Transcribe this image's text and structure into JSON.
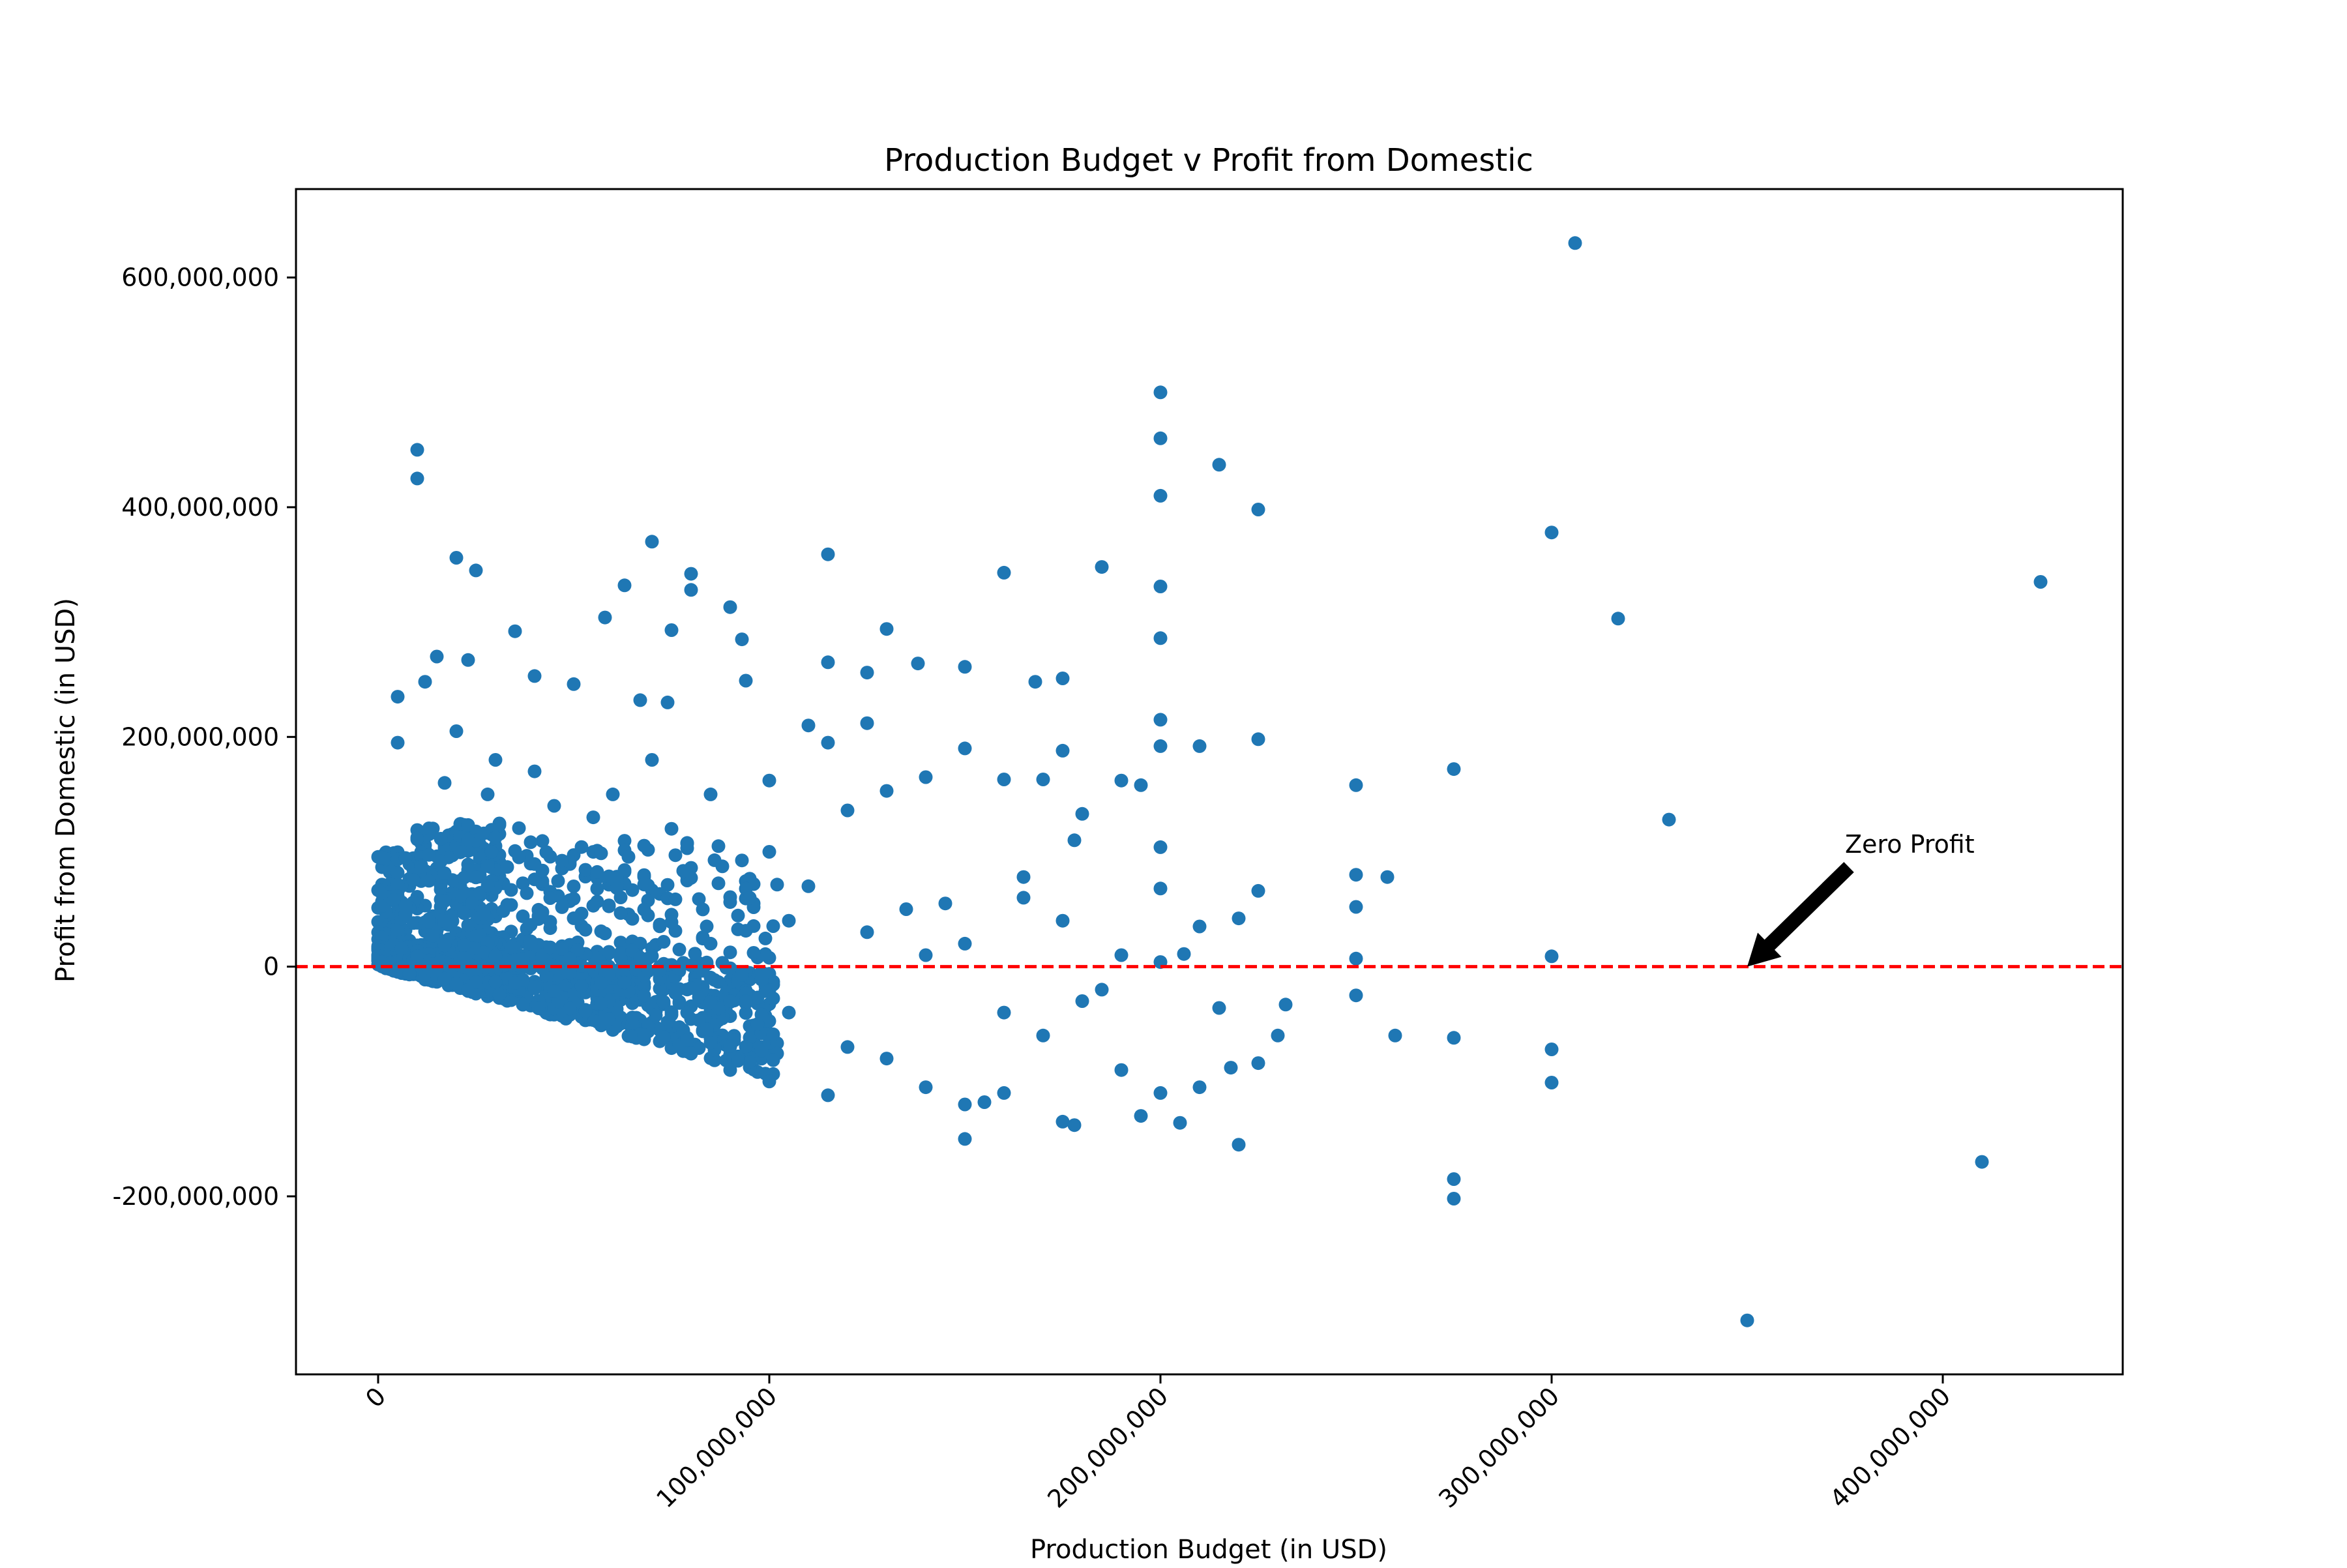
{
  "chart_data": {
    "type": "scatter",
    "title": "Production Budget v Profit from Domestic",
    "xlabel": "Production Budget (in USD)",
    "ylabel": "Profit from Domestic (in USD)",
    "xlim": [
      -21000000,
      446000000
    ],
    "ylim": [
      -355000000,
      677000000
    ],
    "xticks": [
      0,
      100000000,
      200000000,
      300000000,
      400000000
    ],
    "xtick_labels": [
      "0",
      "100,000,000",
      "200,000,000",
      "300,000,000",
      "400,000,000"
    ],
    "yticks": [
      -200000000,
      0,
      200000000,
      400000000,
      600000000
    ],
    "ytick_labels": [
      "-200,000,000",
      "0",
      "200,000,000",
      "400,000,000",
      "600,000,000"
    ],
    "grid": false,
    "marker_color": "#1f77b4",
    "reference_line": {
      "y": 0,
      "style": "dashed",
      "color": "#ff0000"
    },
    "annotation": {
      "text": "Zero Profit",
      "x": 350000000,
      "y": 0,
      "arrow_color": "#000000"
    },
    "series": [
      {
        "values": [
          [
            306000000,
            630000000
          ],
          [
            10000000,
            450000000
          ],
          [
            10000000,
            425000000
          ],
          [
            200000000,
            500000000
          ],
          [
            200000000,
            460000000
          ],
          [
            200000000,
            410000000
          ],
          [
            215000000,
            437000000
          ],
          [
            225000000,
            398000000
          ],
          [
            300000000,
            378000000
          ],
          [
            425000000,
            335000000
          ],
          [
            317000000,
            303000000
          ],
          [
            330000000,
            128000000
          ],
          [
            20000000,
            356000000
          ],
          [
            25000000,
            345000000
          ],
          [
            70000000,
            370000000
          ],
          [
            80000000,
            342000000
          ],
          [
            80000000,
            328000000
          ],
          [
            115000000,
            359000000
          ],
          [
            160000000,
            343000000
          ],
          [
            185000000,
            348000000
          ],
          [
            200000000,
            331000000
          ],
          [
            63000000,
            332000000
          ],
          [
            90000000,
            313000000
          ],
          [
            130000000,
            294000000
          ],
          [
            200000000,
            286000000
          ],
          [
            75000000,
            293000000
          ],
          [
            35000000,
            292000000
          ],
          [
            58000000,
            304000000
          ],
          [
            93000000,
            285000000
          ],
          [
            15000000,
            270000000
          ],
          [
            23000000,
            267000000
          ],
          [
            115000000,
            265000000
          ],
          [
            138000000,
            264000000
          ],
          [
            150000000,
            261000000
          ],
          [
            125000000,
            256000000
          ],
          [
            175000000,
            251000000
          ],
          [
            168000000,
            248000000
          ],
          [
            5000000,
            235000000
          ],
          [
            12000000,
            248000000
          ],
          [
            40000000,
            253000000
          ],
          [
            50000000,
            246000000
          ],
          [
            67000000,
            232000000
          ],
          [
            74000000,
            230000000
          ],
          [
            94000000,
            249000000
          ],
          [
            200000000,
            215000000
          ],
          [
            225000000,
            198000000
          ],
          [
            210000000,
            192000000
          ],
          [
            275000000,
            172000000
          ],
          [
            250000000,
            158000000
          ],
          [
            5000000,
            195000000
          ],
          [
            20000000,
            205000000
          ],
          [
            110000000,
            210000000
          ],
          [
            125000000,
            212000000
          ],
          [
            150000000,
            190000000
          ],
          [
            175000000,
            188000000
          ],
          [
            190000000,
            162000000
          ],
          [
            195000000,
            158000000
          ],
          [
            200000000,
            192000000
          ],
          [
            100000000,
            162000000
          ],
          [
            115000000,
            195000000
          ],
          [
            120000000,
            136000000
          ],
          [
            130000000,
            153000000
          ],
          [
            140000000,
            165000000
          ],
          [
            160000000,
            163000000
          ],
          [
            170000000,
            163000000
          ],
          [
            180000000,
            133000000
          ],
          [
            200000000,
            104000000
          ],
          [
            200000000,
            68000000
          ],
          [
            225000000,
            66000000
          ],
          [
            250000000,
            80000000
          ],
          [
            258000000,
            78000000
          ],
          [
            250000000,
            52000000
          ],
          [
            250000000,
            7000000
          ],
          [
            300000000,
            9000000
          ],
          [
            210000000,
            35000000
          ],
          [
            220000000,
            42000000
          ],
          [
            206000000,
            11000000
          ],
          [
            200000000,
            4000000
          ],
          [
            250000000,
            -25000000
          ],
          [
            260000000,
            -60000000
          ],
          [
            275000000,
            -62000000
          ],
          [
            300000000,
            -72000000
          ],
          [
            300000000,
            -101000000
          ],
          [
            232000000,
            -33000000
          ],
          [
            230000000,
            -60000000
          ],
          [
            225000000,
            -84000000
          ],
          [
            218000000,
            -88000000
          ],
          [
            215000000,
            -36000000
          ],
          [
            210000000,
            -105000000
          ],
          [
            205000000,
            -136000000
          ],
          [
            220000000,
            -155000000
          ],
          [
            200000000,
            -110000000
          ],
          [
            195000000,
            -130000000
          ],
          [
            190000000,
            -90000000
          ],
          [
            175000000,
            -135000000
          ],
          [
            178000000,
            -138000000
          ],
          [
            150000000,
            -150000000
          ],
          [
            275000000,
            -185000000
          ],
          [
            275000000,
            -202000000
          ],
          [
            410000000,
            -170000000
          ],
          [
            350000000,
            -308000000
          ],
          [
            150000000,
            -120000000
          ],
          [
            155000000,
            -118000000
          ],
          [
            160000000,
            -110000000
          ],
          [
            140000000,
            -105000000
          ],
          [
            115000000,
            -112000000
          ],
          [
            100000000,
            -100000000
          ],
          [
            90000000,
            -90000000
          ],
          [
            178000000,
            110000000
          ],
          [
            165000000,
            78000000
          ],
          [
            145000000,
            55000000
          ],
          [
            135000000,
            50000000
          ],
          [
            100000000,
            100000000
          ],
          [
            75000000,
            120000000
          ],
          [
            85000000,
            150000000
          ],
          [
            70000000,
            180000000
          ],
          [
            30000000,
            180000000
          ],
          [
            40000000,
            170000000
          ],
          [
            60000000,
            150000000
          ],
          [
            55000000,
            130000000
          ],
          [
            17000000,
            160000000
          ],
          [
            28000000,
            150000000
          ],
          [
            45000000,
            140000000
          ],
          [
            150000000,
            20000000
          ],
          [
            160000000,
            -40000000
          ],
          [
            120000000,
            -70000000
          ],
          [
            130000000,
            -80000000
          ],
          [
            110000000,
            70000000
          ],
          [
            140000000,
            10000000
          ],
          [
            170000000,
            -60000000
          ],
          [
            180000000,
            -30000000
          ],
          [
            190000000,
            10000000
          ],
          [
            125000000,
            30000000
          ],
          [
            105000000,
            40000000
          ],
          [
            95000000,
            60000000
          ],
          [
            105000000,
            -40000000
          ],
          [
            85000000,
            20000000
          ],
          [
            165000000,
            60000000
          ],
          [
            175000000,
            40000000
          ],
          [
            185000000,
            -20000000
          ]
        ]
      }
    ],
    "dense_cluster": {
      "description_ranges": {
        "x_range": [
          0,
          100000000
        ],
        "note": "thousands of points densely packed between x=0 and x≈100M, y from about -x up to ~120M"
      }
    }
  }
}
